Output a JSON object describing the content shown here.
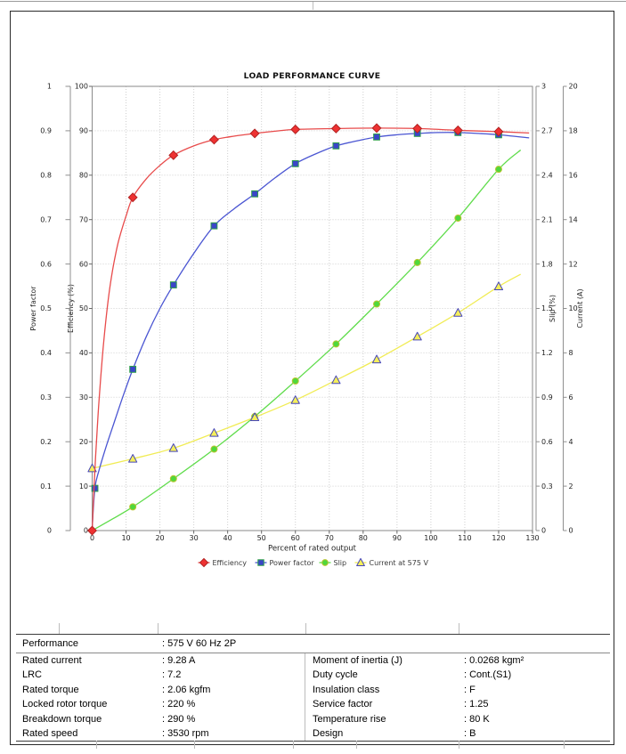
{
  "chart_data": {
    "type": "line",
    "title": "LOAD PERFORMANCE CURVE",
    "x_axis": {
      "label": "Percent of rated output",
      "min": 0,
      "max": 130,
      "tick_step": 10,
      "ticks": [
        "0",
        "10",
        "20",
        "30",
        "40",
        "50",
        "60",
        "70",
        "80",
        "90",
        "100",
        "110",
        "120",
        "130"
      ]
    },
    "y_axes": {
      "power_factor": {
        "label": "Power factor",
        "min": 0,
        "max": 1,
        "ticks": [
          "0",
          "0.1",
          "0.2",
          "0.3",
          "0.4",
          "0.5",
          "0.6",
          "0.7",
          "0.8",
          "0.9",
          "1"
        ]
      },
      "efficiency": {
        "label": "Efficiency (%)",
        "min": 0,
        "max": 100,
        "ticks": [
          "0",
          "10",
          "20",
          "30",
          "40",
          "50",
          "60",
          "70",
          "80",
          "90",
          "100"
        ]
      },
      "slip": {
        "label": "Slip (%)",
        "min": 0,
        "max": 3,
        "ticks": [
          "0",
          "0.3",
          "0.6",
          "0.9",
          "1.2",
          "1.5",
          "1.8",
          "2.1",
          "2.4",
          "2.7",
          "3"
        ]
      },
      "current": {
        "label": "Current (A)",
        "min": 0,
        "max": 20,
        "ticks": [
          "0",
          "2",
          "4",
          "6",
          "8",
          "10",
          "12",
          "14",
          "16",
          "18",
          "20"
        ]
      }
    },
    "grid": true,
    "legend_position": "bottom-center",
    "series": [
      {
        "id": "slip",
        "name": "Slip",
        "axis": "slip",
        "marker": "circle",
        "line_color": "#5fdc4b",
        "marker_fill": "#4fd83c",
        "marker_stroke": "#b9c42e",
        "markers": [
          [
            12,
            0.16
          ],
          [
            24,
            0.35
          ],
          [
            36,
            0.55
          ],
          [
            48,
            0.77
          ],
          [
            60,
            1.01
          ],
          [
            72,
            1.26
          ],
          [
            84,
            1.53
          ],
          [
            96,
            1.81
          ],
          [
            108,
            2.11
          ],
          [
            120,
            2.44
          ]
        ],
        "curve": [
          [
            0,
            0
          ],
          [
            12,
            0.16
          ],
          [
            24,
            0.35
          ],
          [
            36,
            0.55
          ],
          [
            48,
            0.77
          ],
          [
            60,
            1.01
          ],
          [
            72,
            1.26
          ],
          [
            84,
            1.53
          ],
          [
            96,
            1.81
          ],
          [
            108,
            2.11
          ],
          [
            120,
            2.44
          ],
          [
            126.5,
            2.57
          ]
        ]
      },
      {
        "id": "current",
        "name": "Current at 575 V",
        "axis": "current",
        "marker": "triangle",
        "line_color": "#f1ec55",
        "marker_fill": "#f5ef5a",
        "marker_stroke": "#4747bb",
        "markers": [
          [
            0,
            2.8
          ],
          [
            12,
            3.23
          ],
          [
            24,
            3.71
          ],
          [
            36,
            4.39
          ],
          [
            48,
            5.1
          ],
          [
            60,
            5.87
          ],
          [
            72,
            6.77
          ],
          [
            84,
            7.7
          ],
          [
            96,
            8.73
          ],
          [
            108,
            9.8
          ],
          [
            120,
            10.99
          ]
        ],
        "curve": [
          [
            0,
            2.8
          ],
          [
            12,
            3.23
          ],
          [
            24,
            3.71
          ],
          [
            36,
            4.39
          ],
          [
            48,
            5.1
          ],
          [
            60,
            5.87
          ],
          [
            72,
            6.77
          ],
          [
            84,
            7.7
          ],
          [
            96,
            8.73
          ],
          [
            108,
            9.8
          ],
          [
            120,
            10.99
          ],
          [
            126.5,
            11.54
          ]
        ]
      },
      {
        "id": "power-factor",
        "name": "Power factor",
        "axis": "power_factor",
        "marker": "square",
        "line_color": "#4a55d2",
        "marker_fill": "#3a46c8",
        "marker_stroke": "#2e9e4a",
        "markers": [
          [
            0.8,
            0.095
          ],
          [
            12,
            0.363
          ],
          [
            24,
            0.553
          ],
          [
            36,
            0.686
          ],
          [
            48,
            0.758
          ],
          [
            60,
            0.826
          ],
          [
            72,
            0.866
          ],
          [
            84,
            0.886
          ],
          [
            96,
            0.894
          ],
          [
            108,
            0.896
          ],
          [
            120,
            0.891
          ]
        ],
        "curve": [
          [
            0,
            0.005
          ],
          [
            0.8,
            0.095
          ],
          [
            2,
            0.135
          ],
          [
            4,
            0.186
          ],
          [
            6,
            0.232
          ],
          [
            9,
            0.3
          ],
          [
            12,
            0.363
          ],
          [
            16,
            0.437
          ],
          [
            20,
            0.5
          ],
          [
            24,
            0.553
          ],
          [
            30,
            0.624
          ],
          [
            36,
            0.686
          ],
          [
            42,
            0.725
          ],
          [
            48,
            0.758
          ],
          [
            54,
            0.794
          ],
          [
            60,
            0.826
          ],
          [
            66,
            0.848
          ],
          [
            72,
            0.866
          ],
          [
            78,
            0.877
          ],
          [
            84,
            0.886
          ],
          [
            90,
            0.891
          ],
          [
            96,
            0.894
          ],
          [
            102,
            0.896
          ],
          [
            108,
            0.896
          ],
          [
            114,
            0.894
          ],
          [
            120,
            0.891
          ],
          [
            129,
            0.884
          ]
        ]
      },
      {
        "id": "efficiency",
        "name": "Efficiency",
        "axis": "efficiency",
        "marker": "diamond",
        "line_color": "#e84b4b",
        "marker_fill": "#ee3232",
        "marker_stroke": "#b22222",
        "markers": [
          [
            0,
            0
          ],
          [
            12,
            75
          ],
          [
            24,
            84.5
          ],
          [
            36,
            88
          ],
          [
            48,
            89.4
          ],
          [
            60,
            90.3
          ],
          [
            72,
            90.5
          ],
          [
            84,
            90.6
          ],
          [
            96,
            90.5
          ],
          [
            108,
            90.1
          ],
          [
            120,
            89.8
          ]
        ],
        "curve": [
          [
            0,
            0
          ],
          [
            0.5,
            9
          ],
          [
            1,
            16.5
          ],
          [
            1.5,
            23
          ],
          [
            2,
            29
          ],
          [
            3,
            39
          ],
          [
            4,
            47
          ],
          [
            5,
            53.5
          ],
          [
            6,
            58.5
          ],
          [
            7,
            62.5
          ],
          [
            8,
            65.8
          ],
          [
            10,
            70.8
          ],
          [
            12,
            75
          ],
          [
            16,
            79.2
          ],
          [
            20,
            82.2
          ],
          [
            24,
            84.5
          ],
          [
            30,
            86.6
          ],
          [
            36,
            88
          ],
          [
            42,
            88.8
          ],
          [
            48,
            89.4
          ],
          [
            54,
            89.9
          ],
          [
            60,
            90.3
          ],
          [
            72,
            90.5
          ],
          [
            84,
            90.6
          ],
          [
            96,
            90.5
          ],
          [
            108,
            90.1
          ],
          [
            120,
            89.8
          ],
          [
            129,
            89.5
          ]
        ]
      }
    ],
    "legend_order": [
      "efficiency",
      "power-factor",
      "slip",
      "current"
    ]
  },
  "table": {
    "performance_label": "Performance",
    "performance_value": ": 575 V 60 Hz 2P",
    "rows": [
      {
        "l1": "Rated current",
        "v1": ": 9.28 A",
        "l2": "Moment of inertia (J)",
        "v2": ": 0.0268 kgm²"
      },
      {
        "l1": "LRC",
        "v1": ": 7.2",
        "l2": "Duty cycle",
        "v2": ": Cont.(S1)"
      },
      {
        "l1": "Rated torque",
        "v1": ": 2.06 kgfm",
        "l2": "Insulation class",
        "v2": ": F"
      },
      {
        "l1": "Locked rotor torque",
        "v1": ": 220 %",
        "l2": "Service factor",
        "v2": ": 1.25"
      },
      {
        "l1": "Breakdown torque",
        "v1": ": 290 %",
        "l2": "Temperature rise",
        "v2": ": 80 K"
      },
      {
        "l1": "Rated speed",
        "v1": ": 3530 rpm",
        "l2": "Design",
        "v2": ": B"
      }
    ]
  },
  "colors": {
    "grid": "#cfcfcf",
    "frame": "#8a8a8a",
    "axis": "#8f8f8f",
    "tick_text": "#1f1f1f",
    "title_text": "#111111",
    "legend_text": "#3a3a3a"
  }
}
